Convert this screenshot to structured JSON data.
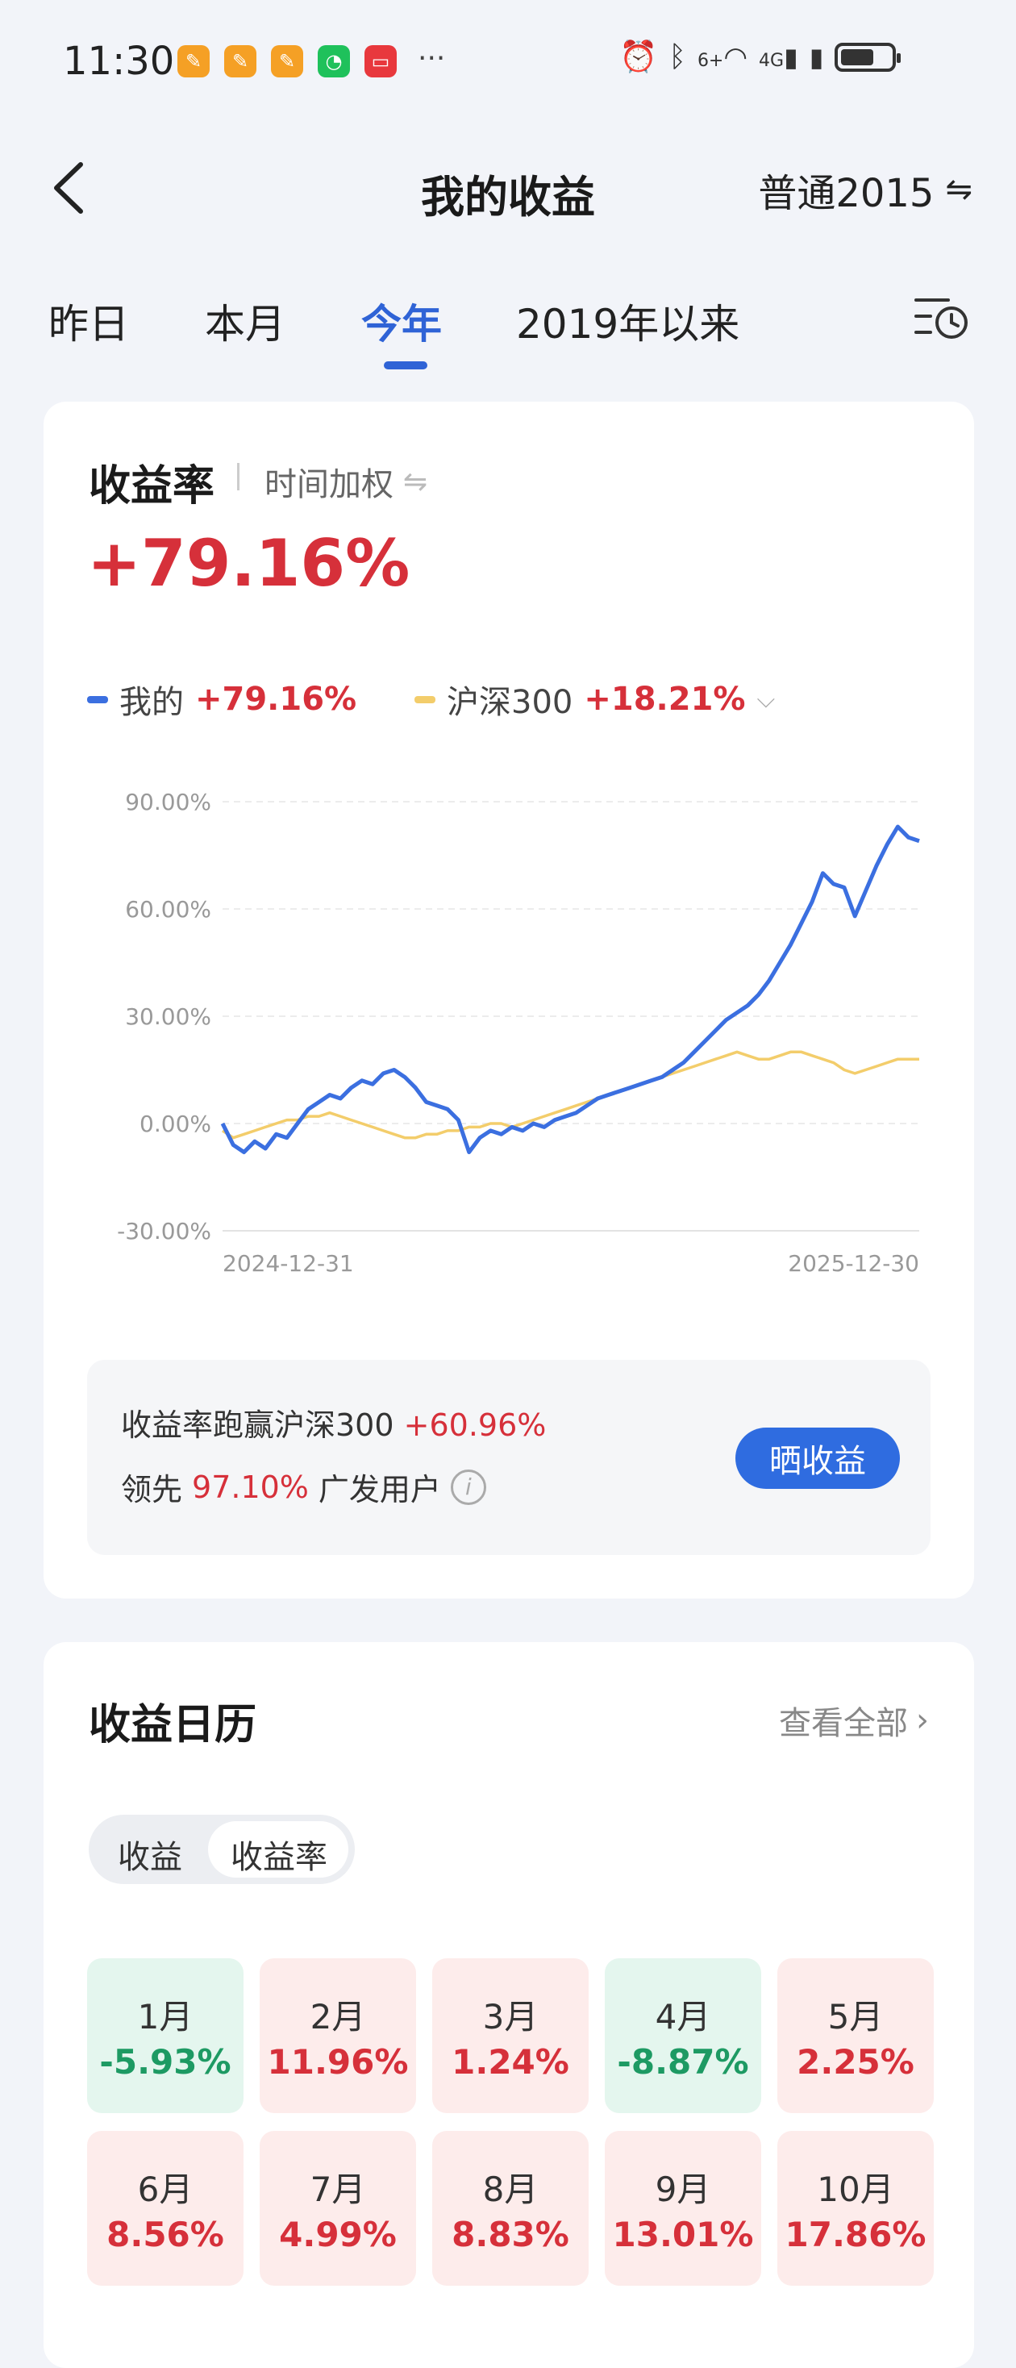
{
  "status_bar": {
    "time": "11:30",
    "more": "···",
    "signal_label": "4G",
    "wifi_label": "6+"
  },
  "header": {
    "title": "我的收益",
    "account": "普通2015",
    "account_switch_icon": "⇋"
  },
  "tabs": [
    {
      "label": "昨日",
      "active": false
    },
    {
      "label": "本月",
      "active": false
    },
    {
      "label": "今年",
      "active": true
    },
    {
      "label": "2019年以来",
      "active": false
    }
  ],
  "returns": {
    "title": "收益率",
    "method": "时间加权",
    "value": "+79.16%",
    "legend": [
      {
        "name": "我的",
        "value": "+79.16%",
        "color": "#3b6fe0"
      },
      {
        "name": "沪深300",
        "value": "+18.21%",
        "color": "#f3cd6b"
      }
    ]
  },
  "chart_data": {
    "type": "line",
    "ylim": [
      -30,
      90
    ],
    "yticks": [
      "90.00%",
      "60.00%",
      "30.00%",
      "0.00%",
      "-30.00%"
    ],
    "ytick_values": [
      90,
      60,
      30,
      0,
      -30
    ],
    "xlabels": [
      "2024-12-31",
      "2025-12-30"
    ],
    "grid": true,
    "series": [
      {
        "name": "我的",
        "color": "#3b6fe0",
        "values": [
          0,
          -6,
          -8,
          -5,
          -7,
          -3,
          -4,
          0,
          4,
          6,
          8,
          7,
          10,
          12,
          11,
          14,
          15,
          13,
          10,
          6,
          5,
          4,
          1,
          -8,
          -4,
          -2,
          -3,
          -1,
          -2,
          0,
          -1,
          1,
          2,
          3,
          5,
          7,
          8,
          9,
          10,
          11,
          12,
          13,
          15,
          17,
          20,
          23,
          26,
          29,
          31,
          33,
          36,
          40,
          45,
          50,
          56,
          62,
          70,
          67,
          66,
          58,
          65,
          72,
          78,
          83,
          80,
          79
        ]
      },
      {
        "name": "沪深300",
        "color": "#f3cd6b",
        "values": [
          -2,
          -4,
          -3,
          -2,
          -1,
          0,
          1,
          1,
          2,
          2,
          3,
          2,
          1,
          0,
          -1,
          -2,
          -3,
          -4,
          -4,
          -3,
          -3,
          -2,
          -2,
          -1,
          -1,
          0,
          0,
          -1,
          0,
          1,
          2,
          3,
          4,
          5,
          6,
          7,
          8,
          9,
          10,
          11,
          12,
          13,
          14,
          15,
          16,
          17,
          18,
          19,
          20,
          19,
          18,
          18,
          19,
          20,
          20,
          19,
          18,
          17,
          15,
          14,
          15,
          16,
          17,
          18,
          18,
          18
        ]
      }
    ]
  },
  "summary": {
    "line1_prefix": "收益率跑赢沪深300",
    "line1_value": "+60.96%",
    "line2_prefix": "领先",
    "line2_value": "97.10%",
    "line2_suffix": "广发用户",
    "share_button": "晒收益"
  },
  "calendar": {
    "title": "收益日历",
    "view_all": "查看全部",
    "segments": [
      "收益",
      "收益率"
    ],
    "months": [
      {
        "label": "1月",
        "value": "-5.93%",
        "sign": "neg"
      },
      {
        "label": "2月",
        "value": "11.96%",
        "sign": "pos"
      },
      {
        "label": "3月",
        "value": "1.24%",
        "sign": "pos"
      },
      {
        "label": "4月",
        "value": "-8.87%",
        "sign": "neg"
      },
      {
        "label": "5月",
        "value": "2.25%",
        "sign": "pos"
      },
      {
        "label": "6月",
        "value": "8.56%",
        "sign": "pos"
      },
      {
        "label": "7月",
        "value": "4.99%",
        "sign": "pos"
      },
      {
        "label": "8月",
        "value": "8.83%",
        "sign": "pos"
      },
      {
        "label": "9月",
        "value": "13.01%",
        "sign": "pos"
      },
      {
        "label": "10月",
        "value": "17.86%",
        "sign": "pos"
      }
    ]
  }
}
